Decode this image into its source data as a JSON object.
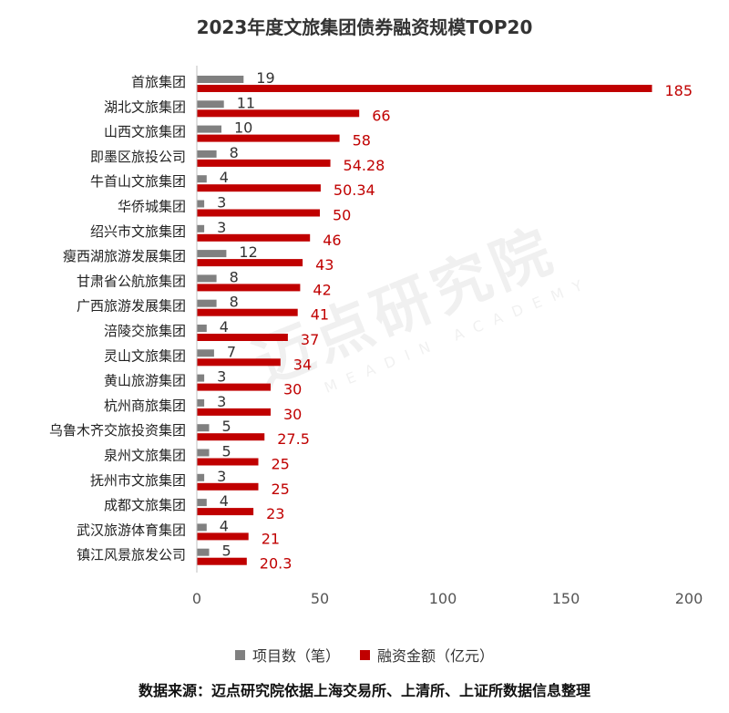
{
  "chart_data": {
    "type": "bar",
    "orientation": "horizontal",
    "title": "2023年度文旅集团债券融资规模TOP20",
    "categories": [
      "首旅集团",
      "湖北文旅集团",
      "山西文旅集团",
      "即墨区旅投公司",
      "牛首山文旅集团",
      "华侨城集团",
      "绍兴市文旅集团",
      "瘦西湖旅游发展集团",
      "甘肃省公航旅集团",
      "广西旅游发展集团",
      "涪陵交旅集团",
      "灵山文旅集团",
      "黄山旅游集团",
      "杭州商旅集团",
      "乌鲁木齐交旅投资集团",
      "泉州文旅集团",
      "抚州市文旅集团",
      "成都文旅集团",
      "武汉旅游体育集团",
      "镇江风景旅发公司"
    ],
    "series": [
      {
        "name": "项目数（笔）",
        "color": "#808080",
        "values": [
          19,
          11,
          10,
          8,
          4,
          3,
          3,
          12,
          8,
          8,
          4,
          7,
          3,
          3,
          5,
          5,
          3,
          4,
          4,
          5
        ]
      },
      {
        "name": "融资金额（亿元）",
        "color": "#c00000",
        "values": [
          185,
          66,
          58,
          54.28,
          50.34,
          50,
          46,
          43,
          42,
          41,
          37,
          34,
          30,
          30,
          27.5,
          25,
          25,
          23,
          21,
          20.3
        ]
      }
    ],
    "value_labels": [
      [
        "19",
        "11",
        "10",
        "8",
        "4",
        "3",
        "3",
        "12",
        "8",
        "8",
        "4",
        "7",
        "3",
        "3",
        "5",
        "5",
        "3",
        "4",
        "4",
        "5"
      ],
      [
        "185",
        "66",
        "58",
        "54.28",
        "50.34",
        "50",
        "46",
        "43",
        "42",
        "41",
        "37",
        "34",
        "30",
        "30",
        "27.5",
        "25",
        "25",
        "23",
        "21",
        "20.3"
      ]
    ],
    "xlim": [
      0,
      200
    ],
    "x_ticks": [
      "0",
      "50",
      "100",
      "150",
      "200"
    ],
    "grid": false,
    "legend_position": "bottom"
  },
  "source": "数据来源：迈点研究院依据上海交易所、上清所、上证所数据信息整理",
  "watermark": {
    "cn": "迈点研究院",
    "en": "MEADIN ACADEMY"
  }
}
